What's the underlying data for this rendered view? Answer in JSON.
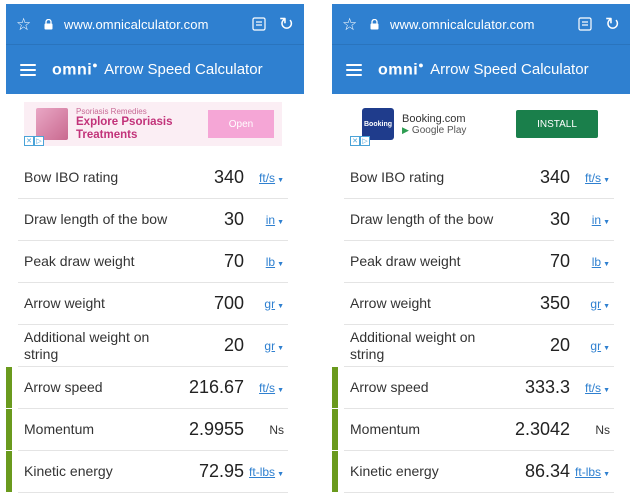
{
  "phones": [
    {
      "id": "left",
      "browser": {
        "url": "www.omnicalculator.com"
      },
      "app": {
        "brand": "omni",
        "title": "Arrow Speed Calculator"
      },
      "ad": {
        "subtitle": "Psoriasis Remedies",
        "headline": "Explore Psoriasis Treatments",
        "cta": "Open"
      },
      "rows": [
        {
          "label": "Bow IBO rating",
          "value": "340",
          "unit": "ft/s"
        },
        {
          "label": "Draw length of the bow",
          "value": "30",
          "unit": "in"
        },
        {
          "label": "Peak draw weight",
          "value": "70",
          "unit": "lb"
        },
        {
          "label": "Arrow weight",
          "value": "700",
          "unit": "gr"
        },
        {
          "label": "Additional weight on string",
          "value": "20",
          "unit": "gr"
        },
        {
          "label": "Arrow speed",
          "value": "216.67",
          "unit": "ft/s"
        },
        {
          "label": "Momentum",
          "value": "2.9955",
          "unit": "Ns"
        },
        {
          "label": "Kinetic energy",
          "value": "72.95",
          "unit": "ft-lbs"
        }
      ]
    },
    {
      "id": "right",
      "browser": {
        "url": "www.omnicalculator.com"
      },
      "app": {
        "brand": "omni",
        "title": "Arrow Speed Calculator"
      },
      "ad": {
        "thumb": "Booking",
        "headline": "Booking.com",
        "store": "Google Play",
        "cta": "INSTALL"
      },
      "rows": [
        {
          "label": "Bow IBO rating",
          "value": "340",
          "unit": "ft/s"
        },
        {
          "label": "Draw length of the bow",
          "value": "30",
          "unit": "in"
        },
        {
          "label": "Peak draw weight",
          "value": "70",
          "unit": "lb"
        },
        {
          "label": "Arrow weight",
          "value": "350",
          "unit": "gr"
        },
        {
          "label": "Additional weight on string",
          "value": "20",
          "unit": "gr"
        },
        {
          "label": "Arrow speed",
          "value": "333.3",
          "unit": "ft/s"
        },
        {
          "label": "Momentum",
          "value": "2.3042",
          "unit": "Ns"
        },
        {
          "label": "Kinetic energy",
          "value": "86.34",
          "unit": "ft-lbs"
        }
      ]
    }
  ],
  "icons": {
    "star": "star-outline-icon",
    "lock": "lock-icon",
    "tabs": "tabs-icon",
    "reload": "reload-icon",
    "menu": "hamburger-menu-icon"
  },
  "colors": {
    "header": "#2f80d0",
    "unit_link": "#2f80d0",
    "result_marker": "#6a9a1d",
    "ad_left_cta": "#f5a6d6",
    "ad_right_cta": "#1a7f4b"
  }
}
